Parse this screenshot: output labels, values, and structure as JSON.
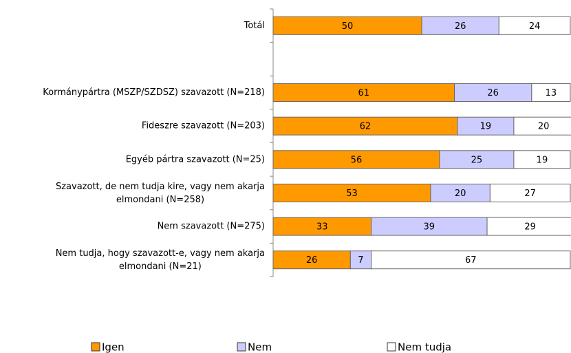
{
  "chart_data": {
    "type": "stacked_barh",
    "categories": [
      "Totál",
      null,
      "Kormánypártra (MSZP/SZDSZ) szavazott (N=218)",
      "Fideszre szavazott (N=203)",
      "Egyéb pártra szavazott (N=25)",
      "Szavazott, de nem tudja kire, vagy nem akarja elmondani (N=258)",
      "Nem szavazott (N=275)",
      "Nem tudja, hogy szavazott-e, vagy nem akarja elmondani (N=21)"
    ],
    "series": [
      {
        "name": "Igen",
        "color": "#ff9900",
        "values": [
          50,
          null,
          61,
          62,
          56,
          53,
          33,
          26
        ]
      },
      {
        "name": "Nem",
        "color": "#ccccff",
        "values": [
          26,
          null,
          26,
          19,
          25,
          20,
          39,
          7
        ]
      },
      {
        "name": "Nem tudja",
        "color": "#ffffff",
        "values": [
          24,
          null,
          13,
          20,
          19,
          27,
          29,
          67
        ]
      }
    ],
    "xlim": [
      0,
      100
    ],
    "legend": "bottom"
  }
}
